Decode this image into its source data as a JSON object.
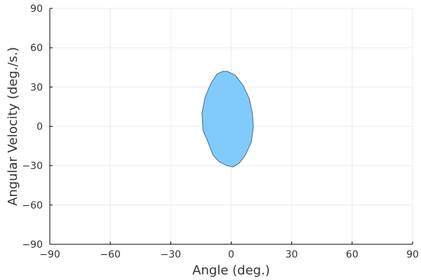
{
  "chart_data": {
    "type": "area",
    "title": "",
    "xlabel": "Angle (deg.)",
    "ylabel": "Angular Velocity (deg./s.)",
    "xlim": [
      -90,
      90
    ],
    "ylim": [
      -90,
      90
    ],
    "xticks": [
      -90,
      -60,
      -30,
      0,
      30,
      60,
      90
    ],
    "yticks": [
      -90,
      -60,
      -30,
      0,
      30,
      60,
      90
    ],
    "xtick_labels": [
      "−90",
      "−60",
      "−30",
      "0",
      "30",
      "60",
      "90"
    ],
    "ytick_labels": [
      "−90",
      "−60",
      "−30",
      "0",
      "30",
      "60",
      "90"
    ],
    "grid": true,
    "legend": "none",
    "series": [
      {
        "fill_color": "#80cbfb",
        "edge_color": "#4a6a82",
        "polygon": [
          [
            -4,
            42
          ],
          [
            -2,
            42
          ],
          [
            2,
            39
          ],
          [
            6,
            31
          ],
          [
            9,
            21
          ],
          [
            10.5,
            10
          ],
          [
            11,
            0
          ],
          [
            10,
            -12
          ],
          [
            7,
            -22
          ],
          [
            4,
            -28
          ],
          [
            1,
            -31
          ],
          [
            -2,
            -30
          ],
          [
            -6,
            -27
          ],
          [
            -9,
            -22
          ],
          [
            -11.5,
            -12
          ],
          [
            -14,
            -3
          ],
          [
            -14.5,
            10
          ],
          [
            -13,
            22
          ],
          [
            -10,
            33
          ],
          [
            -7,
            40
          ]
        ]
      }
    ]
  }
}
